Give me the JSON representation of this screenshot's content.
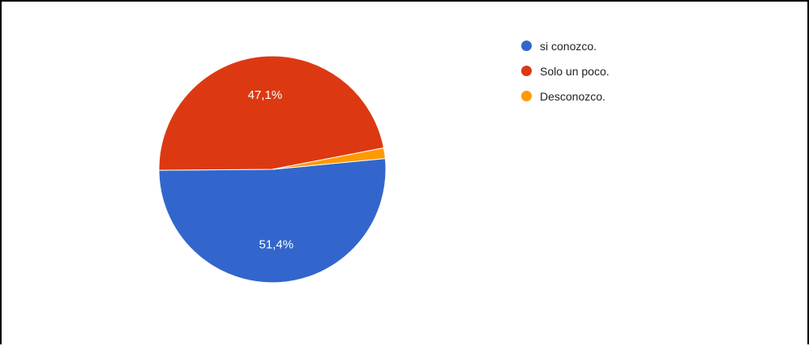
{
  "chart_data": {
    "type": "pie",
    "slices": [
      {
        "label": "si conozco.",
        "value": 51.4,
        "display": "51,4%",
        "color": "#3366cc"
      },
      {
        "label": "Solo un poco.",
        "value": 47.1,
        "display": "47,1%",
        "color": "#dc3912"
      },
      {
        "label": "Desconozco.",
        "value": 1.5,
        "display": "",
        "color": "#ff9900"
      }
    ],
    "legend_position": "top-right"
  }
}
